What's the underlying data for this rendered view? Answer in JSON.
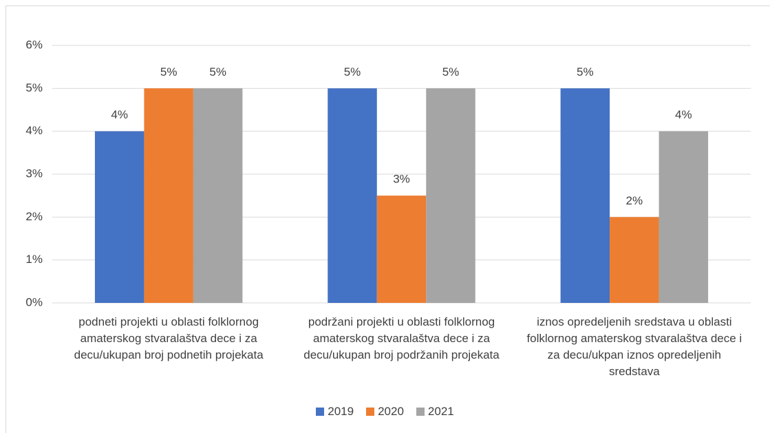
{
  "chart_data": {
    "type": "bar",
    "categories": [
      "podneti projekti u oblasti folklornog amaterskog stvaralaštva dece i za decu/ukupan broj podnetih projekata",
      "podržani projekti u oblasti folklornog amaterskog stvaralaštva dece i za decu/ukupan broj podržanih projekata",
      "iznos opredeljenih sredstava u oblasti folklornog amaterskog stvaralaštva dece i za decu/ukpan iznos opredeljenih sredstava"
    ],
    "series": [
      {
        "name": "2019",
        "color": "#4472c4",
        "values": [
          4,
          5,
          5
        ],
        "value_labels": [
          "4%",
          "5%",
          "5%"
        ]
      },
      {
        "name": "2020",
        "color": "#ed7d31",
        "values": [
          5,
          2.5,
          2
        ],
        "value_labels": [
          "5%",
          "3%",
          "2%"
        ]
      },
      {
        "name": "2021",
        "color": "#a5a5a5",
        "values": [
          5,
          5,
          4
        ],
        "value_labels": [
          "5%",
          "5%",
          "4%"
        ]
      }
    ],
    "ylim": [
      0,
      6
    ],
    "yticks": [
      {
        "value": 0,
        "label": "0%"
      },
      {
        "value": 1,
        "label": "1%"
      },
      {
        "value": 2,
        "label": "2%"
      },
      {
        "value": 3,
        "label": "3%"
      },
      {
        "value": 4,
        "label": "4%"
      },
      {
        "value": 5,
        "label": "5%"
      },
      {
        "value": 6,
        "label": "6%"
      }
    ],
    "grid": true,
    "legend": "bottom"
  }
}
